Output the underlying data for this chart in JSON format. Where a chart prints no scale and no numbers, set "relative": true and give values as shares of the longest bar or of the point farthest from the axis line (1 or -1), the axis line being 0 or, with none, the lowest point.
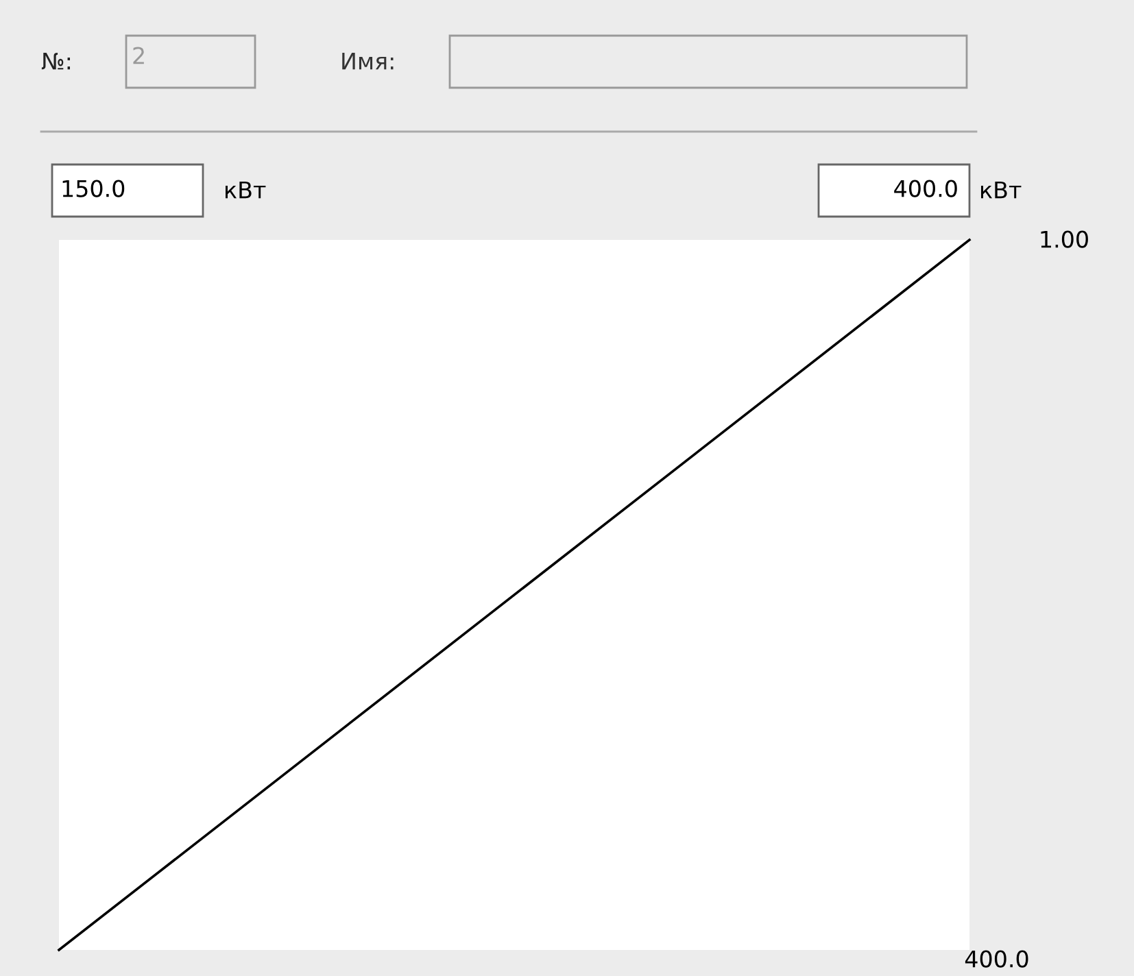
{
  "chart_data": {
    "type": "line",
    "relative": true,
    "categories": [
      null,
      null
    ],
    "series": [
      {
        "color": "#000000",
        "values": [
          0,
          1
        ]
      }
    ],
    "annotations": [
      "№:",
      "2",
      "Имя:",
      "150.0",
      "кВт",
      "400.0",
      "кВт",
      "1.00",
      "400.0"
    ]
  }
}
